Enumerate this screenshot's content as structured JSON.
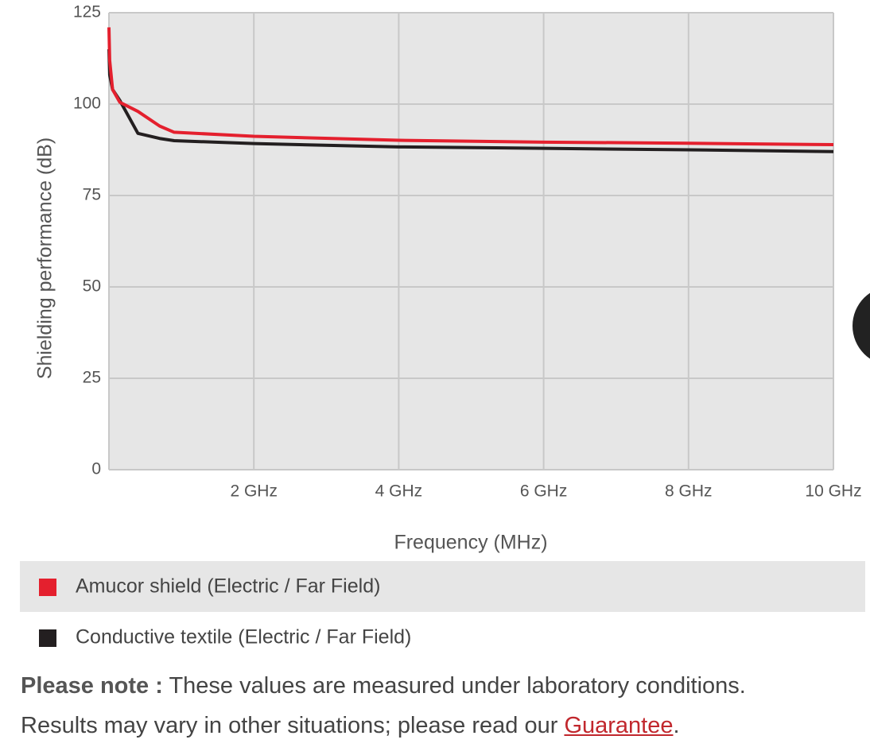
{
  "chart_data": {
    "type": "line",
    "y_label": "Shielding performance (dB)",
    "x_label": "Frequency (MHz)",
    "xlim": [
      0,
      10
    ],
    "ylim": [
      0,
      125
    ],
    "xticks": [
      {
        "value": 2,
        "label": "2 GHz"
      },
      {
        "value": 4,
        "label": "4 GHz"
      },
      {
        "value": 6,
        "label": "6 GHz"
      },
      {
        "value": 8,
        "label": "8 GHz"
      },
      {
        "value": 10,
        "label": "10 GHz"
      }
    ],
    "yticks": [
      0,
      25,
      50,
      75,
      100,
      125
    ],
    "grid": true,
    "series": [
      {
        "name": "Amucor shield (Electric / Far Field)",
        "color": "#e4202e",
        "x": [
          0,
          0.01,
          0.05,
          0.15,
          0.4,
          0.7,
          0.9,
          2,
          4,
          6,
          8,
          10
        ],
        "values": [
          121,
          112,
          104,
          100.5,
          98,
          94,
          92.3,
          91.2,
          90.1,
          89.6,
          89.3,
          88.9
        ]
      },
      {
        "name": "Conductive textile (Electric / Far Field)",
        "color": "#231f20",
        "x": [
          0,
          0.01,
          0.05,
          0.15,
          0.4,
          0.7,
          0.9,
          2,
          4,
          6,
          8,
          10
        ],
        "values": [
          115,
          108,
          104,
          101,
          92,
          90.6,
          90,
          89.2,
          88.3,
          87.9,
          87.5,
          87
        ]
      }
    ]
  },
  "note": {
    "label": "Please note :",
    "line1": "These values are measured under laboratory conditions.",
    "line2": "Results may vary in other situations; please read our",
    "link": "Guarantee",
    "end": "."
  }
}
